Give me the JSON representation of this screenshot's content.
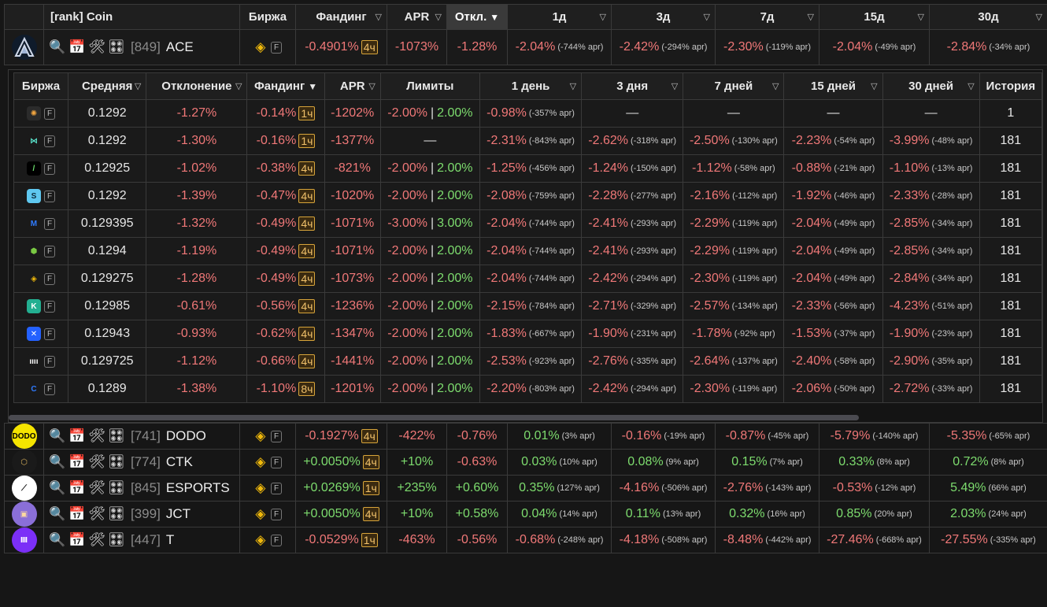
{
  "header": {
    "rank_coin": "[rank] Coin",
    "exchange": "Биржа",
    "funding": "Фандинг",
    "apr": "APR",
    "deviation": "Откл.",
    "d1": "1д",
    "d3": "3д",
    "d7": "7д",
    "d15": "15д",
    "d30": "30д"
  },
  "top_row": {
    "rank": "[849]",
    "coin": "ACE",
    "exchange_badge": "F",
    "funding": "-0.4901%",
    "interval": "4ч",
    "apr": "-1073%",
    "deviation": "-1.28%",
    "d1": "-2.04%",
    "d1_apr": "(-744% apr)",
    "d3": "-2.42%",
    "d3_apr": "(-294% apr)",
    "d7": "-2.30%",
    "d7_apr": "(-119% apr)",
    "d15": "-2.04%",
    "d15_apr": "(-49% apr)",
    "d30": "-2.84%",
    "d30_apr": "(-34% apr)"
  },
  "inner_header": {
    "exchange": "Биржа",
    "avg": "Средняя",
    "deviation": "Отклонение",
    "funding": "Фандинг",
    "apr": "APR",
    "limits": "Лимиты",
    "day1": "1 день",
    "day3": "3 дня",
    "day7": "7 дней",
    "day15": "15 дней",
    "day30": "30 дней",
    "history": "История"
  },
  "inner_rows": [
    {
      "icon": "gear-exchange-icon",
      "color": "#2b2b2b",
      "fg": "#f3a640",
      "glyph": "✺",
      "avg": "0.1292",
      "dev": "-1.27%",
      "fund": "-0.14%",
      "intv": "1ч",
      "apr": "-1202%",
      "lim_lo": "-2.00%",
      "lim_hi": "2.00%",
      "d1": "-0.98%",
      "d1a": "(-357% apr)",
      "d3": "—",
      "d3a": "",
      "d7": "—",
      "d7a": "",
      "d15": "—",
      "d15a": "",
      "d30": "—",
      "d30a": "",
      "hist": "1"
    },
    {
      "icon": "butterfly-exchange-icon",
      "color": "#1a1a1a",
      "fg": "#59e0c8",
      "glyph": "⋈",
      "avg": "0.1292",
      "dev": "-1.30%",
      "fund": "-0.16%",
      "intv": "1ч",
      "apr": "-1377%",
      "lim_lo": "",
      "lim_hi": "",
      "lim_dash": "—",
      "d1": "-2.31%",
      "d1a": "(-843% apr)",
      "d3": "-2.62%",
      "d3a": "(-318% apr)",
      "d7": "-2.50%",
      "d7a": "(-130% apr)",
      "d15": "-2.23%",
      "d15a": "(-54% apr)",
      "d30": "-3.99%",
      "d30a": "(-48% apr)",
      "hist": "181"
    },
    {
      "icon": "slash-exchange-icon",
      "color": "#000000",
      "fg": "#6ee26e",
      "glyph": "/",
      "avg": "0.12925",
      "dev": "-1.02%",
      "fund": "-0.38%",
      "intv": "4ч",
      "apr": "-821%",
      "lim_lo": "-2.00%",
      "lim_hi": "2.00%",
      "d1": "-1.25%",
      "d1a": "(-456% apr)",
      "d3": "-1.24%",
      "d3a": "(-150% apr)",
      "d7": "-1.12%",
      "d7a": "(-58% apr)",
      "d15": "-0.88%",
      "d15a": "(-21% apr)",
      "d30": "-1.10%",
      "d30a": "(-13% apr)",
      "hist": "181"
    },
    {
      "icon": "s-exchange-icon",
      "color": "#5fc8f0",
      "fg": "#0b2a3a",
      "glyph": "S",
      "avg": "0.1292",
      "dev": "-1.39%",
      "fund": "-0.47%",
      "intv": "4ч",
      "apr": "-1020%",
      "lim_lo": "-2.00%",
      "lim_hi": "2.00%",
      "d1": "-2.08%",
      "d1a": "(-759% apr)",
      "d3": "-2.28%",
      "d3a": "(-277% apr)",
      "d7": "-2.16%",
      "d7a": "(-112% apr)",
      "d15": "-1.92%",
      "d15a": "(-46% apr)",
      "d30": "-2.33%",
      "d30a": "(-28% apr)",
      "hist": "181"
    },
    {
      "icon": "m-exchange-icon",
      "color": "#1a1a1a",
      "fg": "#2f7bff",
      "glyph": "M",
      "avg": "0.129395",
      "dev": "-1.32%",
      "fund": "-0.49%",
      "intv": "4ч",
      "apr": "-1071%",
      "lim_lo": "-3.00%",
      "lim_hi": "3.00%",
      "d1": "-2.04%",
      "d1a": "(-744% apr)",
      "d3": "-2.41%",
      "d3a": "(-293% apr)",
      "d7": "-2.29%",
      "d7a": "(-119% apr)",
      "d15": "-2.04%",
      "d15a": "(-49% apr)",
      "d30": "-2.85%",
      "d30a": "(-34% apr)",
      "hist": "181"
    },
    {
      "icon": "hex-exchange-icon",
      "color": "#1a1a1a",
      "fg": "#7ac943",
      "glyph": "⬢",
      "avg": "0.1294",
      "dev": "-1.19%",
      "fund": "-0.49%",
      "intv": "4ч",
      "apr": "-1071%",
      "lim_lo": "-2.00%",
      "lim_hi": "2.00%",
      "d1": "-2.04%",
      "d1a": "(-744% apr)",
      "d3": "-2.41%",
      "d3a": "(-293% apr)",
      "d7": "-2.29%",
      "d7a": "(-119% apr)",
      "d15": "-2.04%",
      "d15a": "(-49% apr)",
      "d30": "-2.85%",
      "d30a": "(-34% apr)",
      "hist": "181"
    },
    {
      "icon": "binance-icon",
      "color": "#1a1a1a",
      "fg": "#f0b90b",
      "glyph": "◈",
      "avg": "0.129275",
      "dev": "-1.28%",
      "fund": "-0.49%",
      "intv": "4ч",
      "apr": "-1073%",
      "lim_lo": "-2.00%",
      "lim_hi": "2.00%",
      "d1": "-2.04%",
      "d1a": "(-744% apr)",
      "d3": "-2.42%",
      "d3a": "(-294% apr)",
      "d7": "-2.30%",
      "d7a": "(-119% apr)",
      "d15": "-2.04%",
      "d15a": "(-49% apr)",
      "d30": "-2.84%",
      "d30a": "(-34% apr)",
      "hist": "181"
    },
    {
      "icon": "kucoin-icon",
      "color": "#23af91",
      "fg": "#ffffff",
      "glyph": "K",
      "avg": "0.12985",
      "dev": "-0.61%",
      "fund": "-0.56%",
      "intv": "4ч",
      "apr": "-1236%",
      "lim_lo": "-2.00%",
      "lim_hi": "2.00%",
      "d1": "-2.15%",
      "d1a": "(-784% apr)",
      "d3": "-2.71%",
      "d3a": "(-329% apr)",
      "d7": "-2.57%",
      "d7a": "(-134% apr)",
      "d15": "-2.33%",
      "d15a": "(-56% apr)",
      "d30": "-4.23%",
      "d30a": "(-51% apr)",
      "hist": "181"
    },
    {
      "icon": "x-exchange-icon",
      "color": "#2461ff",
      "fg": "#ffffff",
      "glyph": "✕",
      "avg": "0.12943",
      "dev": "-0.93%",
      "fund": "-0.62%",
      "intv": "4ч",
      "apr": "-1347%",
      "lim_lo": "-2.00%",
      "lim_hi": "2.00%",
      "d1": "-1.83%",
      "d1a": "(-667% apr)",
      "d3": "-1.90%",
      "d3a": "(-231% apr)",
      "d7": "-1.78%",
      "d7a": "(-92% apr)",
      "d15": "-1.53%",
      "d15a": "(-37% apr)",
      "d30": "-1.90%",
      "d30a": "(-23% apr)",
      "hist": "181"
    },
    {
      "icon": "bars-exchange-icon",
      "color": "#1a1a1a",
      "fg": "#ffffff",
      "glyph": "ıııı",
      "avg": "0.129725",
      "dev": "-1.12%",
      "fund": "-0.66%",
      "intv": "4ч",
      "apr": "-1441%",
      "lim_lo": "-2.00%",
      "lim_hi": "2.00%",
      "d1": "-2.53%",
      "d1a": "(-923% apr)",
      "d3": "-2.76%",
      "d3a": "(-335% apr)",
      "d7": "-2.64%",
      "d7a": "(-137% apr)",
      "d15": "-2.40%",
      "d15a": "(-58% apr)",
      "d30": "-2.90%",
      "d30a": "(-35% apr)",
      "hist": "181"
    },
    {
      "icon": "c-exchange-icon",
      "color": "#1a1a1a",
      "fg": "#2f7bff",
      "glyph": "C",
      "avg": "0.1289",
      "dev": "-1.38%",
      "fund": "-1.10%",
      "intv": "8ч",
      "apr": "-1201%",
      "lim_lo": "-2.00%",
      "lim_hi": "2.00%",
      "d1": "-2.20%",
      "d1a": "(-803% apr)",
      "d3": "-2.42%",
      "d3a": "(-294% apr)",
      "d7": "-2.30%",
      "d7a": "(-119% apr)",
      "d15": "-2.06%",
      "d15a": "(-50% apr)",
      "d30": "-2.72%",
      "d30a": "(-33% apr)",
      "hist": "181"
    }
  ],
  "bottom_rows": [
    {
      "logo": "dodo-logo",
      "logo_bg": "#f5e400",
      "logo_fg": "#000",
      "logo_text": "DODO",
      "rank": "[741]",
      "coin": "DODO",
      "funding": "-0.1927%",
      "interval": "4ч",
      "apr": "-422%",
      "dev": "-0.76%",
      "d1": "0.01%",
      "d1a": "(3% apr)",
      "d3": "-0.16%",
      "d3a": "(-19% apr)",
      "d7": "-0.87%",
      "d7a": "(-45% apr)",
      "d15": "-5.79%",
      "d15a": "(-140% apr)",
      "d30": "-5.35%",
      "d30a": "(-65% apr)"
    },
    {
      "logo": "ctk-logo",
      "logo_bg": "#1a1a1a",
      "logo_fg": "#d9b15c",
      "logo_text": "⬡",
      "rank": "[774]",
      "coin": "CTK",
      "funding": "+0.0050%",
      "interval": "4ч",
      "apr": "+10%",
      "dev": "-0.63%",
      "d1": "0.03%",
      "d1a": "(10% apr)",
      "d3": "0.08%",
      "d3a": "(9% apr)",
      "d7": "0.15%",
      "d7a": "(7% apr)",
      "d15": "0.33%",
      "d15a": "(8% apr)",
      "d30": "0.72%",
      "d30a": "(8% apr)"
    },
    {
      "logo": "esports-logo",
      "logo_bg": "#ffffff",
      "logo_fg": "#111",
      "logo_text": "⟋",
      "rank": "[845]",
      "coin": "ESPORTS",
      "funding": "+0.0269%",
      "interval": "1ч",
      "apr": "+235%",
      "dev": "+0.60%",
      "d1": "0.35%",
      "d1a": "(127% apr)",
      "d3": "-4.16%",
      "d3a": "(-506% apr)",
      "d7": "-2.76%",
      "d7a": "(-143% apr)",
      "d15": "-0.53%",
      "d15a": "(-12% apr)",
      "d30": "5.49%",
      "d30a": "(66% apr)"
    },
    {
      "logo": "jct-logo",
      "logo_bg": "#8a6fd8",
      "logo_fg": "#ffd9a0",
      "logo_text": "▣",
      "rank": "[399]",
      "coin": "JCT",
      "funding": "+0.0050%",
      "interval": "4ч",
      "apr": "+10%",
      "dev": "+0.58%",
      "d1": "0.04%",
      "d1a": "(14% apr)",
      "d3": "0.11%",
      "d3a": "(13% apr)",
      "d7": "0.32%",
      "d7a": "(16% apr)",
      "d15": "0.85%",
      "d15a": "(20% apr)",
      "d30": "2.03%",
      "d30a": "(24% apr)"
    },
    {
      "logo": "t-logo",
      "logo_bg": "#7b2ff7",
      "logo_fg": "#ffffff",
      "logo_text": "Ⅲ",
      "rank": "[447]",
      "coin": "T",
      "funding": "-0.0529%",
      "interval": "1ч",
      "apr": "-463%",
      "dev": "-0.56%",
      "d1": "-0.68%",
      "d1a": "(-248% apr)",
      "d3": "-4.18%",
      "d3a": "(-508% apr)",
      "d7": "-8.48%",
      "d7a": "(-442% apr)",
      "d15": "-27.46%",
      "d15a": "(-668% apr)",
      "d30": "-27.55%",
      "d30a": "(-335% apr)"
    }
  ],
  "colors": {
    "negative": "#f07878",
    "positive": "#7ddc6e",
    "interval_badge": "#f0c06a"
  }
}
